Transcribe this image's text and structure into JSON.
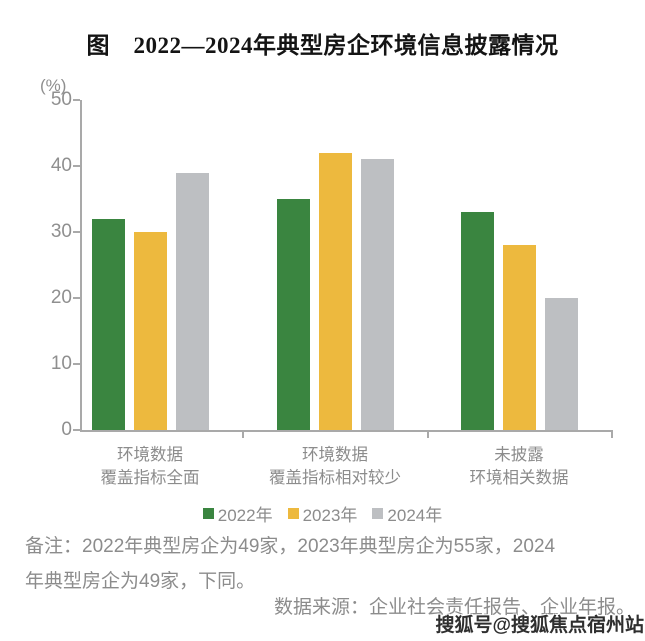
{
  "chart_data": {
    "type": "bar",
    "title": "图　2022—2024年典型房企环境信息披露情况",
    "unit_label": "(%)",
    "xlabel": "",
    "ylabel": "(%)",
    "categories": [
      "环境数据\n覆盖指标全面",
      "环境数据\n覆盖指标相对较少",
      "未披露\n环境相关数据"
    ],
    "series": [
      {
        "name": "2022年",
        "color": "#3a8540",
        "values": [
          32,
          35,
          33
        ]
      },
      {
        "name": "2023年",
        "color": "#edb93e",
        "values": [
          30,
          42,
          28
        ]
      },
      {
        "name": "2024年",
        "color": "#bdbfc2",
        "values": [
          39,
          41,
          20
        ]
      }
    ],
    "ylim": [
      0,
      50
    ],
    "yticks": [
      0,
      10,
      20,
      30,
      40,
      50
    ],
    "grid": false,
    "legend_position": "bottom"
  },
  "notes": {
    "remark_lines": [
      "备注：2022年典型房企为49家，2023年典型房企为55家，2024",
      "年典型房企为49家，下同。"
    ],
    "source": "数据来源：企业社会责任报告、企业年报。"
  },
  "watermark": "搜狐号@搜狐焦点宿州站",
  "colors": {
    "axis": "#a9a9a9",
    "text_gray": "#8c8c8c",
    "title": "#141414",
    "bar_2022": "#3a8540",
    "bar_2023": "#edb93e",
    "bar_2024": "#bdbfc2",
    "watermark": "#2f2f2f"
  }
}
